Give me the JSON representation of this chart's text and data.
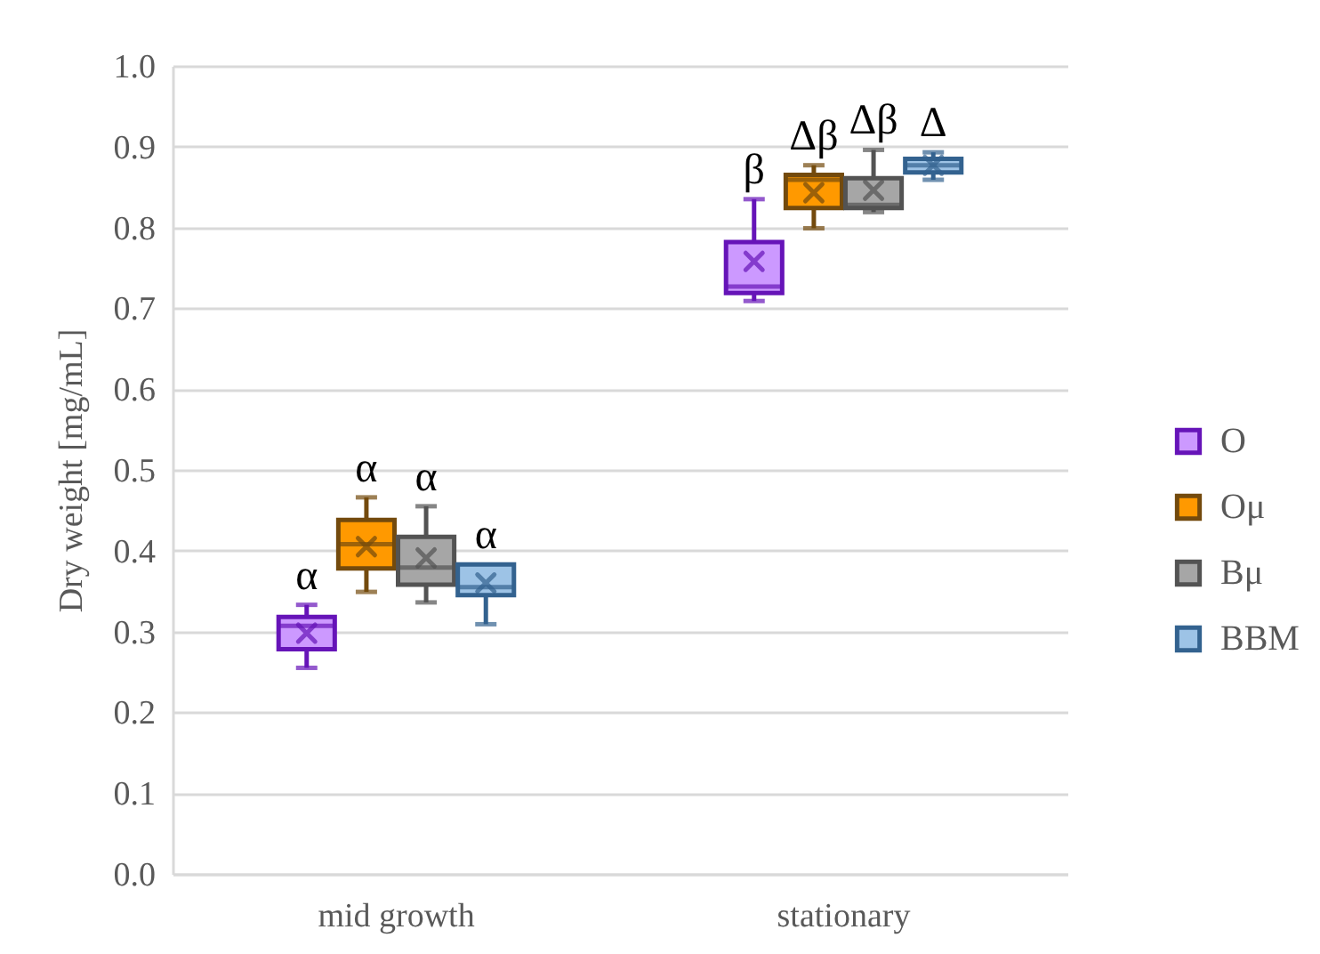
{
  "chart_data": {
    "type": "box",
    "ylabel": "Dry weight [mg/mL]",
    "categories": [
      "mid growth",
      "stationary"
    ],
    "series": [
      {
        "name": "O",
        "color": "#cc99ff",
        "boxes": [
          {
            "low": 0.255,
            "q1": 0.278,
            "median": 0.307,
            "q3": 0.318,
            "high": 0.333,
            "mean": 0.298
          },
          {
            "low": 0.709,
            "q1": 0.719,
            "median": 0.727,
            "q3": 0.782,
            "high": 0.835,
            "mean": 0.758
          }
        ]
      },
      {
        "name": "Oμ",
        "color": "#ff9900",
        "boxes": [
          {
            "low": 0.349,
            "q1": 0.378,
            "median": 0.408,
            "q3": 0.438,
            "high": 0.466,
            "mean": 0.405
          },
          {
            "low": 0.799,
            "q1": 0.824,
            "median": 0.859,
            "q3": 0.865,
            "high": 0.877,
            "mean": 0.843
          }
        ]
      },
      {
        "name": "Bμ",
        "color": "#a6a6a6",
        "boxes": [
          {
            "low": 0.336,
            "q1": 0.358,
            "median": 0.379,
            "q3": 0.417,
            "high": 0.455,
            "mean": 0.391
          },
          {
            "low": 0.819,
            "q1": 0.824,
            "median": 0.828,
            "q3": 0.861,
            "high": 0.896,
            "mean": 0.846
          }
        ]
      },
      {
        "name": "BBM",
        "color": "#9dc3e6",
        "boxes": [
          {
            "low": 0.309,
            "q1": 0.345,
            "median": 0.355,
            "q3": 0.383,
            "high": 0.383,
            "mean": 0.36
          },
          {
            "low": 0.859,
            "q1": 0.868,
            "median": 0.877,
            "q3": 0.885,
            "high": 0.893,
            "mean": 0.877
          }
        ]
      }
    ],
    "annotations": [
      "α",
      "α",
      "α",
      "α",
      "β",
      "Δβ",
      "Δβ",
      "Δ"
    ],
    "ylim": [
      0,
      1
    ],
    "yticks": [
      {
        "value": 0,
        "label": "0.0"
      },
      0.1,
      0.2,
      0.3,
      0.4,
      0.5,
      0.6,
      0.7,
      0.8,
      0.9,
      {
        "value": 1,
        "label": "1.0"
      }
    ],
    "grid": "y",
    "legend": "right"
  }
}
